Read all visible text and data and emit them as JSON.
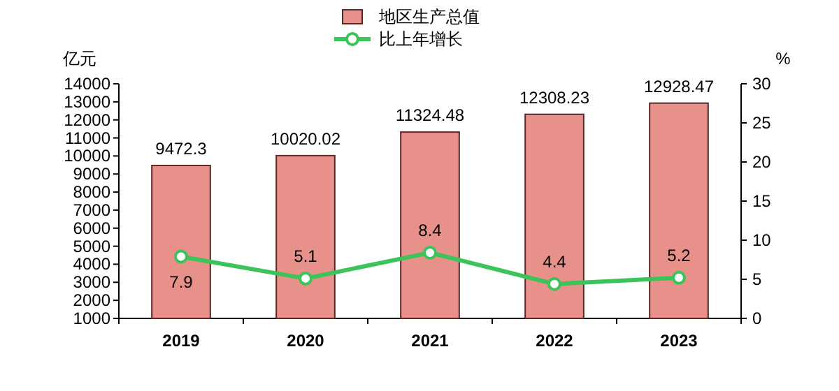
{
  "chart_data": {
    "type": "bar",
    "categories": [
      "2019",
      "2020",
      "2021",
      "2022",
      "2023"
    ],
    "ylabel": "亿元",
    "y2label": "%",
    "ylim": [
      1000,
      14000
    ],
    "yticks": [
      1000,
      2000,
      3000,
      4000,
      5000,
      6000,
      7000,
      8000,
      9000,
      10000,
      11000,
      12000,
      13000,
      14000
    ],
    "y2lim": [
      0,
      30
    ],
    "y2ticks": [
      0,
      5,
      10,
      15,
      20,
      25,
      30
    ],
    "legend": "top",
    "data_labels": true,
    "grid": false,
    "series": [
      {
        "name": "地区生产总值",
        "color": "#e8908a",
        "values": [
          9472.3,
          10020.02,
          11324.48,
          12308.23,
          12928.47
        ]
      },
      {
        "name": "比上年增长",
        "type": "line",
        "axis": "y2",
        "color": "#3cc45a",
        "marker": "circle",
        "values": [
          7.9,
          5.1,
          8.4,
          4.4,
          5.2
        ]
      }
    ]
  }
}
